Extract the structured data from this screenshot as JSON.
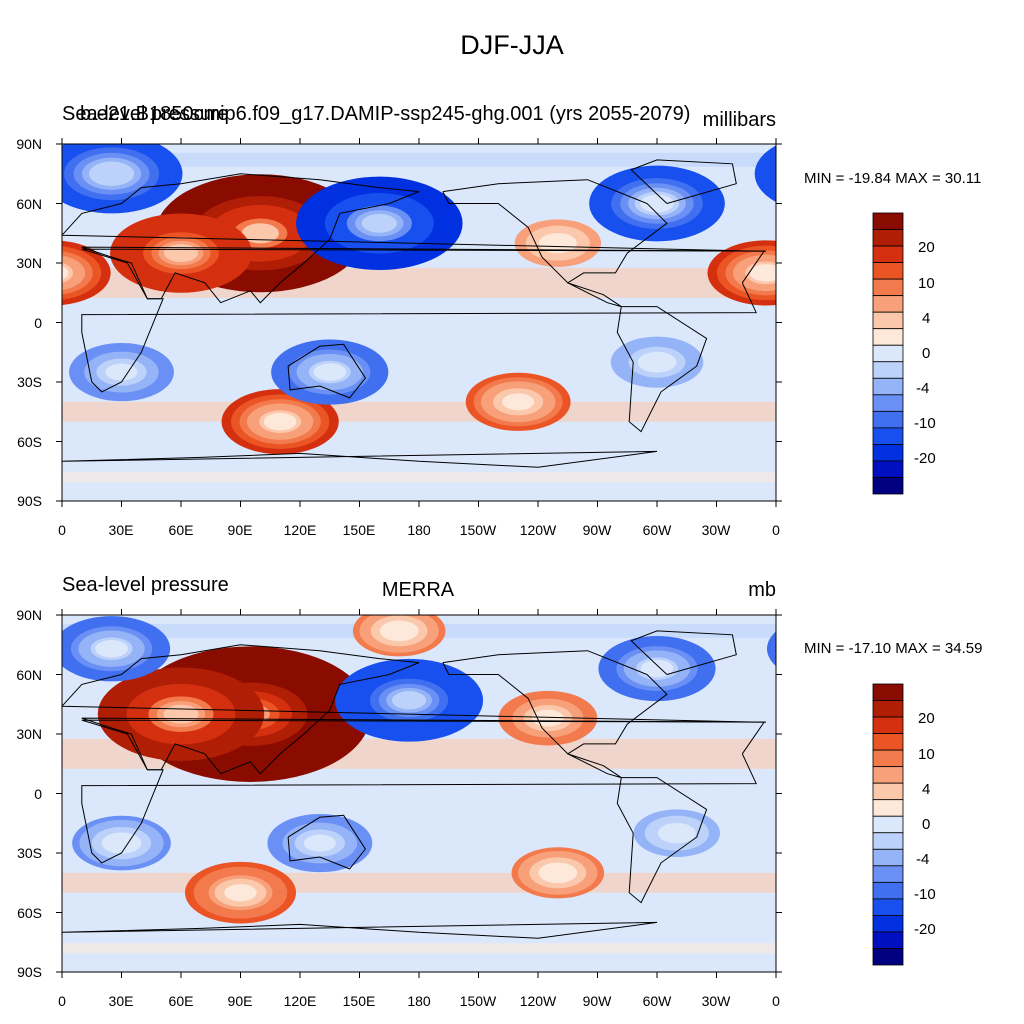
{
  "main_title": "DJF-JJA",
  "colors": [
    "#000080",
    "#0010c0",
    "#0030e0",
    "#1850f0",
    "#4070f0",
    "#6a90f5",
    "#95b3f7",
    "#bdd2fa",
    "#dbe8fc",
    "#fde8da",
    "#fcc8ac",
    "#f7a07a",
    "#f27a4c",
    "#eb5424",
    "#d43010",
    "#b01e06",
    "#8a0c00"
  ],
  "colorbar": {
    "labels": [
      "20",
      "10",
      "4",
      "0",
      "-4",
      "-10",
      "-20"
    ]
  },
  "axes": {
    "lat_labels": [
      "90N",
      "60N",
      "30N",
      "0",
      "30S",
      "60S",
      "90S"
    ],
    "lon_labels": [
      "0",
      "30E",
      "60E",
      "90E",
      "120E",
      "150E",
      "180",
      "150W",
      "120W",
      "90W",
      "60W",
      "30W",
      "0"
    ]
  },
  "panels": [
    {
      "left_title": "Sea-level pressure",
      "center_title": "b.e21.B1850cmip6.f09_g17.DAMIP-ssp245-ghg.001 (yrs 2055-2079)",
      "right_title": "millibars",
      "minmax": "MIN = -19.84 MAX =  30.11"
    },
    {
      "left_title": "Sea-level pressure",
      "center_title": "MERRA",
      "right_title": "mb",
      "minmax": "MIN = -17.10 MAX =  34.59"
    }
  ],
  "chart_data": {
    "type": "heatmap",
    "title": "DJF-JJA",
    "variable": "Sea-level pressure",
    "units": "mb",
    "colorbar_levels": [
      -25,
      -20,
      -15,
      -10,
      -8,
      -6,
      -4,
      -2,
      0,
      2,
      4,
      6,
      8,
      10,
      15,
      20,
      25
    ],
    "panels": [
      {
        "name": "b.e21.B1850cmip6.f09_g17.DAMIP-ssp245-ghg.001 (yrs 2055-2079)",
        "min": -19.84,
        "max": 30.11,
        "features": [
          {
            "lon": 100,
            "lat": 45,
            "value": 25
          },
          {
            "lon": 60,
            "lat": 35,
            "value": 14
          },
          {
            "lon": 160,
            "lat": 50,
            "value": -18
          },
          {
            "lon": 300,
            "lat": 60,
            "value": -13
          },
          {
            "lon": 25,
            "lat": 75,
            "value": -14
          },
          {
            "lon": 110,
            "lat": -50,
            "value": 10
          },
          {
            "lon": 230,
            "lat": -40,
            "value": 8
          },
          {
            "lon": 250,
            "lat": 40,
            "value": 5
          },
          {
            "lon": 355,
            "lat": 25,
            "value": 10
          },
          {
            "lon": 135,
            "lat": -25,
            "value": -10
          },
          {
            "lon": 30,
            "lat": -25,
            "value": -8
          },
          {
            "lon": 300,
            "lat": -20,
            "value": -6
          }
        ]
      },
      {
        "name": "MERRA",
        "min": -17.1,
        "max": 34.59,
        "features": [
          {
            "lon": 95,
            "lat": 40,
            "value": 30
          },
          {
            "lon": 60,
            "lat": 40,
            "value": 18
          },
          {
            "lon": 175,
            "lat": 47,
            "value": -15
          },
          {
            "lon": 300,
            "lat": 63,
            "value": -10
          },
          {
            "lon": 25,
            "lat": 73,
            "value": -10
          },
          {
            "lon": 90,
            "lat": -50,
            "value": 9
          },
          {
            "lon": 250,
            "lat": -40,
            "value": 6
          },
          {
            "lon": 245,
            "lat": 38,
            "value": 7
          },
          {
            "lon": 130,
            "lat": -25,
            "value": -8
          },
          {
            "lon": 30,
            "lat": -25,
            "value": -7
          },
          {
            "lon": 310,
            "lat": -20,
            "value": -5
          },
          {
            "lon": 170,
            "lat": 82,
            "value": 6
          }
        ]
      }
    ]
  }
}
